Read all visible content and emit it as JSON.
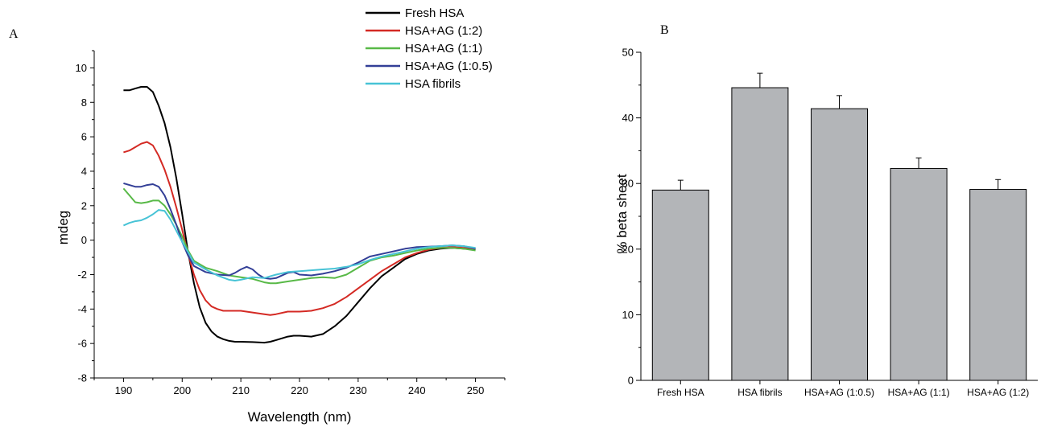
{
  "chart_data": [
    {
      "panel": "A",
      "type": "line",
      "xlabel": "Wavelength (nm)",
      "ylabel": "mdeg",
      "xlim": [
        185,
        255
      ],
      "ylim": [
        -8,
        11
      ],
      "xticks": [
        190,
        200,
        210,
        220,
        230,
        240,
        250
      ],
      "yticks": [
        -8,
        -6,
        -4,
        -2,
        0,
        2,
        4,
        6,
        8,
        10
      ],
      "legend_position": "top-right",
      "series": [
        {
          "name": "Fresh HSA",
          "color": "#000000",
          "x": [
            190,
            191,
            192,
            193,
            194,
            195,
            196,
            197,
            198,
            199,
            200,
            201,
            202,
            203,
            204,
            205,
            206,
            207,
            208,
            209,
            210,
            212,
            214,
            215,
            216,
            218,
            219,
            220,
            222,
            224,
            226,
            228,
            230,
            232,
            234,
            236,
            238,
            240,
            242,
            244,
            246,
            248,
            250
          ],
          "y": [
            8.7,
            8.7,
            8.8,
            8.9,
            8.9,
            8.6,
            7.8,
            6.8,
            5.4,
            3.6,
            1.5,
            -0.7,
            -2.5,
            -3.9,
            -4.8,
            -5.3,
            -5.6,
            -5.75,
            -5.85,
            -5.9,
            -5.9,
            -5.92,
            -5.95,
            -5.9,
            -5.8,
            -5.6,
            -5.55,
            -5.55,
            -5.6,
            -5.45,
            -5.0,
            -4.4,
            -3.6,
            -2.8,
            -2.1,
            -1.6,
            -1.1,
            -0.8,
            -0.6,
            -0.5,
            -0.45,
            -0.5,
            -0.55
          ]
        },
        {
          "name": "HSA+AG (1:2)",
          "color": "#d42a24",
          "x": [
            190,
            191,
            192,
            193,
            194,
            195,
            196,
            197,
            198,
            199,
            200,
            201,
            202,
            203,
            204,
            205,
            206,
            207,
            208,
            210,
            212,
            214,
            215,
            216,
            218,
            220,
            222,
            224,
            226,
            228,
            230,
            232,
            234,
            236,
            238,
            240,
            242,
            244,
            246,
            248,
            250
          ],
          "y": [
            5.1,
            5.2,
            5.4,
            5.6,
            5.7,
            5.5,
            4.9,
            4.1,
            3.1,
            1.9,
            0.6,
            -0.8,
            -2.0,
            -2.9,
            -3.5,
            -3.85,
            -4.0,
            -4.1,
            -4.1,
            -4.1,
            -4.2,
            -4.3,
            -4.35,
            -4.3,
            -4.15,
            -4.15,
            -4.1,
            -3.95,
            -3.7,
            -3.3,
            -2.8,
            -2.3,
            -1.8,
            -1.4,
            -1.0,
            -0.75,
            -0.55,
            -0.45,
            -0.4,
            -0.45,
            -0.5
          ]
        },
        {
          "name": "HSA+AG (1:1)",
          "color": "#58b947",
          "x": [
            190,
            191,
            192,
            193,
            194,
            195,
            196,
            197,
            198,
            199,
            200,
            201,
            202,
            204,
            206,
            208,
            210,
            212,
            214,
            215,
            216,
            218,
            220,
            222,
            224,
            226,
            228,
            230,
            232,
            234,
            236,
            238,
            240,
            242,
            244,
            246,
            248,
            250
          ],
          "y": [
            3.0,
            2.6,
            2.2,
            2.15,
            2.2,
            2.3,
            2.3,
            2.0,
            1.5,
            0.9,
            0.2,
            -0.6,
            -1.2,
            -1.6,
            -1.8,
            -2.05,
            -2.15,
            -2.25,
            -2.45,
            -2.5,
            -2.5,
            -2.4,
            -2.3,
            -2.2,
            -2.15,
            -2.2,
            -2.0,
            -1.6,
            -1.2,
            -1.0,
            -0.9,
            -0.75,
            -0.6,
            -0.5,
            -0.45,
            -0.45,
            -0.5,
            -0.6
          ]
        },
        {
          "name": "HSA+AG (1:0.5)",
          "color": "#333f97",
          "x": [
            190,
            191,
            192,
            193,
            194,
            195,
            196,
            197,
            198,
            199,
            200,
            201,
            202,
            204,
            206,
            208,
            209,
            210,
            211,
            212,
            213,
            214,
            215,
            216,
            218,
            219,
            220,
            222,
            224,
            226,
            228,
            230,
            232,
            234,
            236,
            238,
            240,
            242,
            244,
            246,
            248,
            250
          ],
          "y": [
            3.3,
            3.2,
            3.1,
            3.1,
            3.2,
            3.25,
            3.1,
            2.6,
            1.8,
            0.9,
            -0.1,
            -0.9,
            -1.5,
            -1.85,
            -2.0,
            -2.05,
            -1.9,
            -1.7,
            -1.55,
            -1.7,
            -2.0,
            -2.2,
            -2.25,
            -2.2,
            -1.9,
            -1.85,
            -2.0,
            -2.05,
            -1.95,
            -1.8,
            -1.6,
            -1.3,
            -0.95,
            -0.8,
            -0.65,
            -0.5,
            -0.4,
            -0.38,
            -0.35,
            -0.3,
            -0.35,
            -0.5
          ]
        },
        {
          "name": "HSA fibrils",
          "color": "#47c3d6",
          "x": [
            190,
            191,
            192,
            193,
            194,
            195,
            196,
            197,
            198,
            199,
            200,
            201,
            202,
            204,
            206,
            208,
            209,
            210,
            212,
            214,
            215,
            216,
            218,
            220,
            222,
            224,
            226,
            228,
            230,
            232,
            234,
            236,
            238,
            240,
            242,
            244,
            246,
            248,
            250
          ],
          "y": [
            0.85,
            1.0,
            1.1,
            1.15,
            1.3,
            1.5,
            1.75,
            1.7,
            1.2,
            0.55,
            -0.1,
            -0.7,
            -1.3,
            -1.7,
            -2.05,
            -2.3,
            -2.35,
            -2.3,
            -2.15,
            -2.2,
            -2.1,
            -2.0,
            -1.85,
            -1.8,
            -1.75,
            -1.7,
            -1.65,
            -1.55,
            -1.4,
            -1.15,
            -0.95,
            -0.8,
            -0.65,
            -0.5,
            -0.4,
            -0.35,
            -0.3,
            -0.35,
            -0.45
          ]
        }
      ]
    },
    {
      "panel": "B",
      "type": "bar",
      "ylabel": "% beta sheet",
      "xlabel": "",
      "ylim": [
        0,
        50
      ],
      "yticks": [
        0,
        10,
        20,
        30,
        40,
        50
      ],
      "bar_color": "#b3b5b8",
      "categories": [
        "Fresh HSA",
        "HSA fibrils",
        "HSA+AG (1:0.5)",
        "HSA+AG (1:1)",
        "HSA+AG (1:2)"
      ],
      "values": [
        29.0,
        44.6,
        41.4,
        32.3,
        29.1
      ],
      "errors": [
        1.5,
        2.2,
        2.0,
        1.6,
        1.5
      ]
    }
  ]
}
